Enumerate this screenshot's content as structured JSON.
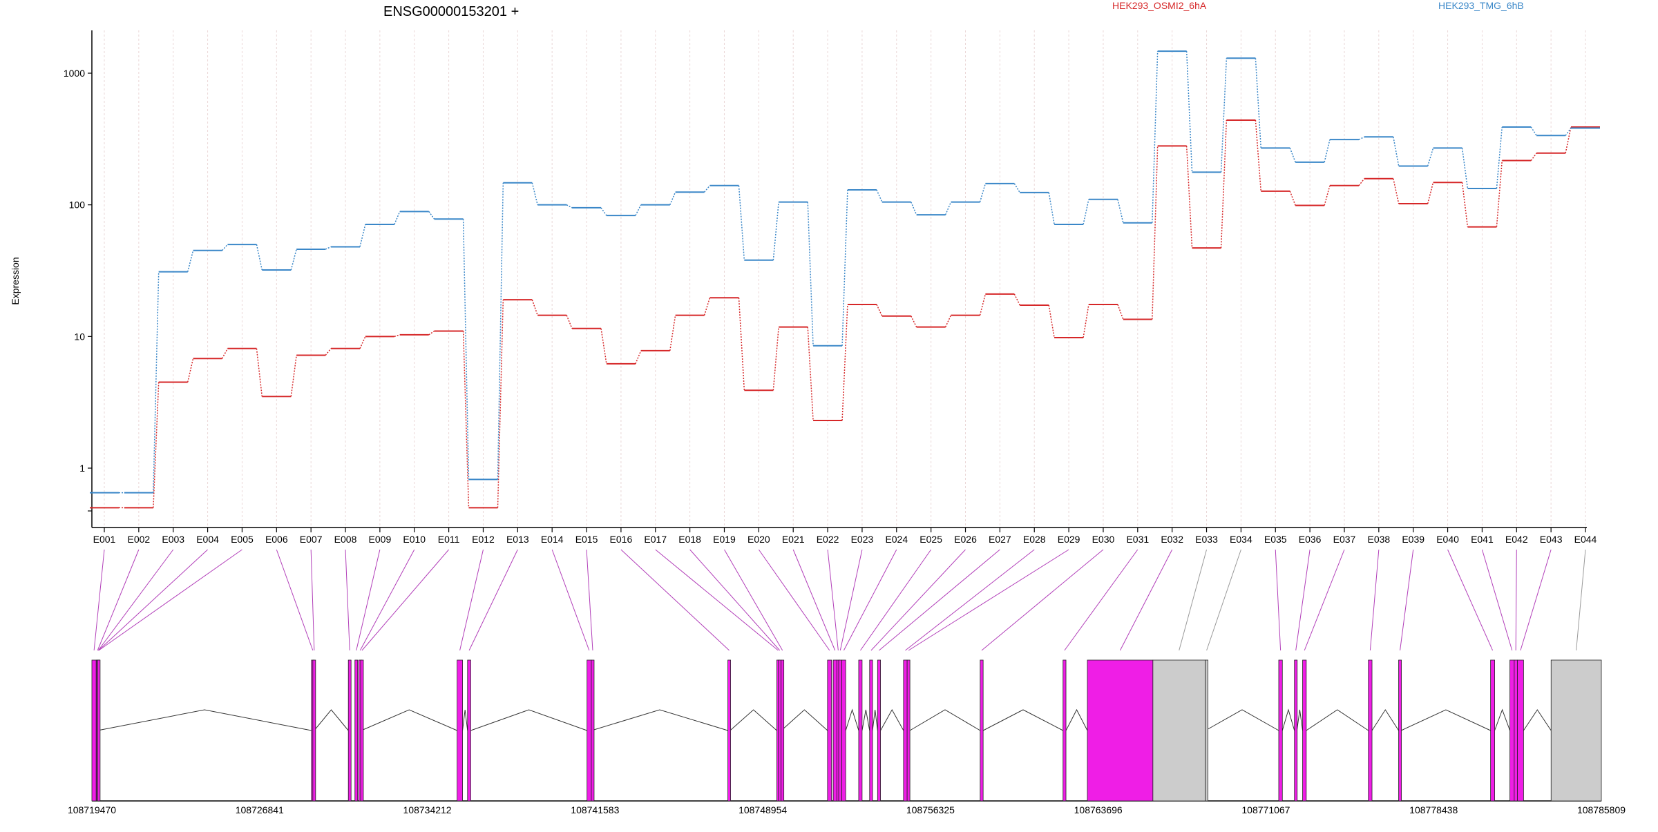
{
  "chart_data": {
    "type": "line",
    "title": "ENSG00000153201 +",
    "ylabel": "Expression",
    "y_scale": "log",
    "ylim": [
      0.4,
      2000
    ],
    "y_ticks": [
      1,
      10,
      100,
      1000
    ],
    "y_tick_labels": [
      "1",
      "10",
      "100",
      "1000"
    ],
    "grid": "vertical dotted lines at each exon",
    "legend_placement": "top",
    "categories": [
      "E001",
      "E002",
      "E003",
      "E004",
      "E005",
      "E006",
      "E007",
      "E008",
      "E009",
      "E010",
      "E011",
      "E012",
      "E013",
      "E014",
      "E015",
      "E016",
      "E017",
      "E018",
      "E019",
      "E020",
      "E021",
      "E022",
      "E023",
      "E024",
      "E025",
      "E026",
      "E027",
      "E028",
      "E029",
      "E030",
      "E031",
      "E032",
      "E033",
      "E034",
      "E035",
      "E036",
      "E037",
      "E038",
      "E039",
      "E040",
      "E041",
      "E042",
      "E043",
      "E044"
    ],
    "series": [
      {
        "name": "HEK293_OSMI2_6hA",
        "color": "#d62728",
        "values": [
          0.5,
          0.5,
          4.5,
          6.8,
          8.1,
          3.5,
          7.2,
          8.1,
          10,
          10.3,
          11,
          0.5,
          19,
          14.5,
          11.5,
          6.2,
          7.8,
          14.5,
          19.7,
          3.9,
          11.8,
          2.3,
          17.5,
          14.3,
          11.8,
          14.5,
          21,
          17.3,
          9.8,
          17.5,
          13.5,
          280,
          47,
          440,
          127,
          99,
          140,
          158,
          102,
          148,
          68,
          217,
          247,
          390
        ]
      },
      {
        "name": "HEK293_TMG_6hB",
        "color": "#3a87c8",
        "values": [
          0.65,
          0.65,
          31,
          45,
          50,
          32,
          46,
          48,
          71,
          89,
          78,
          0.82,
          147,
          100,
          95,
          83,
          100,
          125,
          140,
          38,
          105,
          8.5,
          130,
          105,
          84,
          105,
          145,
          124,
          71,
          110,
          73,
          1470,
          177,
          1300,
          270,
          211,
          313,
          328,
          197,
          270,
          133,
          390,
          336,
          383
        ]
      }
    ],
    "gene_model": {
      "coord_ticks": [
        "108719470",
        "108726841",
        "108734212",
        "108741583",
        "108748954",
        "108756325",
        "108763696",
        "108771067",
        "108778438",
        "108785809"
      ],
      "coord_range": [
        108719470,
        108785809
      ],
      "exon_color": "#ef1ee6",
      "utr_color": "#cccccc",
      "exons": [
        {
          "id": "E001",
          "start": 108719470,
          "end": 108719660
        },
        {
          "id": "E002",
          "start": 108719660,
          "end": 108719690
        },
        {
          "id": "E003",
          "start": 108719690,
          "end": 108719700
        },
        {
          "id": "E004",
          "start": 108719700,
          "end": 108719710
        },
        {
          "id": "E005",
          "start": 108719710,
          "end": 108719720
        },
        {
          "id": "E006",
          "start": 108729120,
          "end": 108729180
        },
        {
          "id": "E007",
          "start": 108729180,
          "end": 108729240
        },
        {
          "id": "E008",
          "start": 108730740,
          "end": 108730860
        },
        {
          "id": "E009",
          "start": 108731030,
          "end": 108731150
        },
        {
          "id": "E010",
          "start": 108731200,
          "end": 108731280
        },
        {
          "id": "E011",
          "start": 108731280,
          "end": 108731310
        },
        {
          "id": "E012",
          "start": 108735520,
          "end": 108735760
        },
        {
          "id": "E013",
          "start": 108735980,
          "end": 108736120
        },
        {
          "id": "E014",
          "start": 108741230,
          "end": 108741420
        },
        {
          "id": "E015",
          "start": 108741420,
          "end": 108741430
        },
        {
          "id": "E016",
          "start": 108747420,
          "end": 108747520
        },
        {
          "id": "E017",
          "start": 108749570,
          "end": 108749640
        },
        {
          "id": "E018",
          "start": 108749640,
          "end": 108749760
        },
        {
          "id": "E019",
          "start": 108749760,
          "end": 108749770
        },
        {
          "id": "E020",
          "start": 108751800,
          "end": 108751980
        },
        {
          "id": "E021",
          "start": 108752050,
          "end": 108752210
        },
        {
          "id": "E022",
          "start": 108752210,
          "end": 108752290
        },
        {
          "id": "E023",
          "start": 108752290,
          "end": 108752430
        },
        {
          "id": "E024",
          "start": 108752430,
          "end": 108752600
        },
        {
          "id": "E025",
          "start": 108753170,
          "end": 108753320
        },
        {
          "id": "E026",
          "start": 108753650,
          "end": 108753780
        },
        {
          "id": "E027",
          "start": 108754000,
          "end": 108754130
        },
        {
          "id": "E028",
          "start": 108755140,
          "end": 108755300
        },
        {
          "id": "E029",
          "start": 108755300,
          "end": 108755420
        },
        {
          "id": "E030",
          "start": 108758510,
          "end": 108758640
        },
        {
          "id": "E031",
          "start": 108762150,
          "end": 108762280
        },
        {
          "id": "E032",
          "start": 108763220,
          "end": 108766100
        },
        {
          "id": "E033",
          "start": 108766100,
          "end": 108768400,
          "utr": true
        },
        {
          "id": "E034",
          "start": 108768400,
          "end": 108768410,
          "utr": true
        },
        {
          "id": "E035",
          "start": 108771630,
          "end": 108771790
        },
        {
          "id": "E036",
          "start": 108772320,
          "end": 108772430
        },
        {
          "id": "E037",
          "start": 108772680,
          "end": 108772840
        },
        {
          "id": "E038",
          "start": 108775570,
          "end": 108775730
        },
        {
          "id": "E039",
          "start": 108776900,
          "end": 108777010
        },
        {
          "id": "E040",
          "start": 108780940,
          "end": 108781120
        },
        {
          "id": "E041",
          "start": 108781790,
          "end": 108781980
        },
        {
          "id": "E042",
          "start": 108781980,
          "end": 108782120
        },
        {
          "id": "E043",
          "start": 108782120,
          "end": 108782390
        },
        {
          "id": "E044",
          "start": 108783600,
          "end": 108785809,
          "utr": true
        }
      ]
    }
  }
}
